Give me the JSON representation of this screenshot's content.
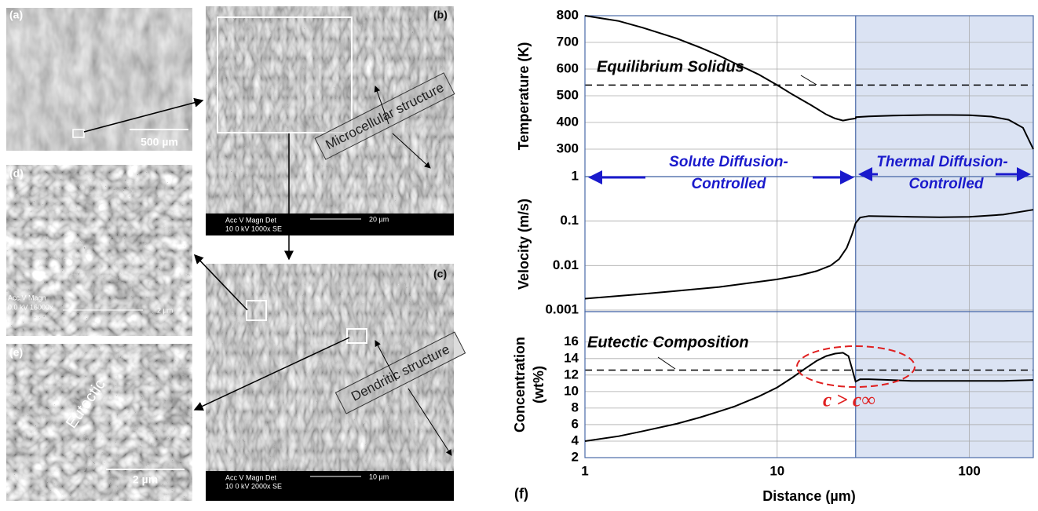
{
  "micrographs": {
    "a": {
      "label": "(a)",
      "scale": "500 µm"
    },
    "b": {
      "label": "(b)",
      "feature": "Microcellular structure",
      "info": [
        "Acc V  Magn    Det",
        "10 0 kV 1000x   SE"
      ],
      "scale": "20 µm"
    },
    "c": {
      "label": "(c)",
      "feature": "Dendritic structure",
      "info": [
        "Acc V  Magn    Det",
        "10 0 kV 2000x   SE"
      ],
      "scale": "10 µm"
    },
    "d": {
      "label": "(d)",
      "info": [
        "Acc.V  Magn",
        "0.0 kV 16000x"
      ],
      "scale": "2 µm"
    },
    "e": {
      "label": "(e)",
      "feature": "Eutectic",
      "scale": "2 µm"
    }
  },
  "panel_label": "(f)",
  "regions": {
    "left": [
      "Solute Diffusion-",
      "Controlled"
    ],
    "right": [
      "Thermal Diffusion-",
      "Controlled"
    ]
  },
  "note": "c > c∞",
  "chart_data": [
    {
      "type": "line",
      "y_label": "Temperature (K)",
      "xscale": "log",
      "xlim": [
        1,
        215
      ],
      "xticks": [
        1,
        10,
        100
      ],
      "ylim": [
        300,
        800
      ],
      "yticks": [
        300,
        400,
        500,
        600,
        700,
        800
      ],
      "grid": true,
      "shade": {
        "from": 25.6,
        "color": "#dbe3f3"
      },
      "ref_line": {
        "value": 540,
        "label": "Equilibrium Solidus"
      },
      "x": [
        1,
        1.5,
        2,
        3,
        4,
        5,
        6,
        7,
        8,
        10,
        12,
        15,
        18,
        20,
        22,
        24,
        25.6,
        25.7,
        30,
        40,
        60,
        80,
        100,
        130,
        160,
        190,
        215
      ],
      "series": [
        {
          "color": "#000000",
          "values": [
            800,
            780,
            755,
            715,
            680,
            650,
            622,
            600,
            580,
            540,
            505,
            465,
            430,
            415,
            407,
            412,
            415,
            420,
            423,
            426,
            428,
            428,
            427,
            422,
            410,
            380,
            300
          ]
        }
      ]
    },
    {
      "type": "line",
      "y_label": "Velocity (m/s)",
      "xscale": "log",
      "yscale": "log",
      "xlim": [
        1,
        215
      ],
      "xticks": [
        1,
        10,
        100
      ],
      "ylim": [
        0.001,
        1
      ],
      "yticks": [
        0.001,
        0.01,
        0.1,
        1
      ],
      "grid": true,
      "shade": {
        "from": 25.6,
        "color": "#dbe3f3"
      },
      "x": [
        1,
        2,
        3,
        5,
        7,
        10,
        13,
        16,
        19,
        21,
        23,
        24.5,
        25.6,
        27,
        30,
        50,
        70,
        100,
        150,
        215
      ],
      "series": [
        {
          "color": "#000000",
          "values": [
            0.0018,
            0.0023,
            0.0027,
            0.0033,
            0.004,
            0.0049,
            0.006,
            0.0075,
            0.01,
            0.014,
            0.025,
            0.05,
            0.09,
            0.12,
            0.13,
            0.125,
            0.122,
            0.125,
            0.14,
            0.18
          ]
        }
      ]
    },
    {
      "type": "line",
      "y_label": [
        "Concentration",
        "(wt%)"
      ],
      "x_label": "Distance (µm)",
      "xscale": "log",
      "xlim": [
        1,
        215
      ],
      "xticks": [
        1,
        10,
        100
      ],
      "ylim": [
        2,
        19.4
      ],
      "yticks": [
        2,
        4,
        6,
        8,
        10,
        12,
        14,
        16
      ],
      "grid": true,
      "shade": {
        "from": 25.6,
        "color": "#dbe3f3"
      },
      "ref_line": {
        "value": 12.6,
        "label": "Eutectic Composition"
      },
      "x": [
        1,
        1.5,
        2,
        3,
        4,
        5,
        6,
        8,
        10,
        12,
        14,
        16,
        18,
        20,
        22,
        23.5,
        24.5,
        25.6,
        27,
        30,
        50,
        100,
        150,
        215
      ],
      "series": [
        {
          "color": "#000000",
          "values": [
            4,
            4.6,
            5.2,
            6.1,
            6.9,
            7.6,
            8.2,
            9.4,
            10.5,
            11.7,
            12.8,
            13.7,
            14.3,
            14.6,
            14.7,
            14.3,
            12.8,
            11.2,
            11.5,
            11.5,
            11.3,
            11.3,
            11.3,
            11.4
          ]
        }
      ]
    }
  ]
}
